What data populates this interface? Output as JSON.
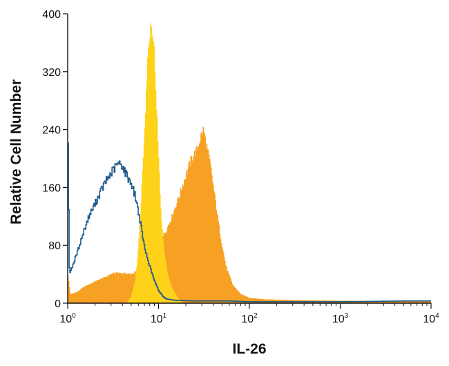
{
  "chart_data": {
    "type": "area",
    "xlabel": "IL-26",
    "ylabel": "Relative Cell Number",
    "x_scale": "log",
    "xlim": [
      1,
      10000
    ],
    "ylim": [
      0,
      400
    ],
    "x_ticks": [
      {
        "value": 1,
        "base": "10",
        "exp": "0"
      },
      {
        "value": 10,
        "base": "10",
        "exp": "1"
      },
      {
        "value": 100,
        "base": "10",
        "exp": "2"
      },
      {
        "value": 1000,
        "base": "10",
        "exp": "3"
      },
      {
        "value": 10000,
        "base": "10",
        "exp": "4"
      }
    ],
    "y_ticks": [
      {
        "value": 0,
        "label": "0"
      },
      {
        "value": 80,
        "label": "80"
      },
      {
        "value": 160,
        "label": "160"
      },
      {
        "value": 240,
        "label": "240"
      },
      {
        "value": 320,
        "label": "320"
      },
      {
        "value": 400,
        "label": "400"
      }
    ],
    "grid": false,
    "legend": "none",
    "series": [
      {
        "style": "filled",
        "color": "#f7a124",
        "points": [
          [
            1,
            38
          ],
          [
            1.06,
            12
          ],
          [
            1.25,
            15
          ],
          [
            1.5,
            22
          ],
          [
            2,
            30
          ],
          [
            2.5,
            35
          ],
          [
            3,
            40
          ],
          [
            3.5,
            42
          ],
          [
            4,
            41
          ],
          [
            5,
            40
          ],
          [
            6,
            45
          ],
          [
            7,
            50
          ],
          [
            8,
            62
          ],
          [
            9,
            72
          ],
          [
            10,
            82
          ],
          [
            12,
            100
          ],
          [
            14,
            120
          ],
          [
            17,
            150
          ],
          [
            20,
            178
          ],
          [
            23,
            200
          ],
          [
            26,
            210
          ],
          [
            29,
            230
          ],
          [
            31,
            240
          ],
          [
            33,
            222
          ],
          [
            37,
            190
          ],
          [
            42,
            140
          ],
          [
            48,
            90
          ],
          [
            55,
            50
          ],
          [
            65,
            25
          ],
          [
            80,
            12
          ],
          [
            100,
            7
          ],
          [
            150,
            5
          ],
          [
            300,
            4
          ],
          [
            1000,
            3
          ],
          [
            10000,
            2
          ]
        ]
      },
      {
        "style": "filled",
        "color": "#ffd21a",
        "points": [
          [
            4.5,
            0
          ],
          [
            5,
            10
          ],
          [
            5.5,
            30
          ],
          [
            6,
            80
          ],
          [
            6.5,
            160
          ],
          [
            7,
            250
          ],
          [
            7.5,
            330
          ],
          [
            8,
            380
          ],
          [
            8.4,
            385
          ],
          [
            8.8,
            360
          ],
          [
            9.3,
            290
          ],
          [
            10,
            190
          ],
          [
            10.7,
            110
          ],
          [
            11.5,
            70
          ],
          [
            12.5,
            40
          ],
          [
            14,
            20
          ],
          [
            16,
            8
          ],
          [
            18,
            0
          ]
        ]
      },
      {
        "style": "outline",
        "color": "#1d5a8c",
        "points": [
          [
            1,
            215
          ],
          [
            1.04,
            40
          ],
          [
            1.15,
            55
          ],
          [
            1.3,
            75
          ],
          [
            1.5,
            100
          ],
          [
            1.7,
            120
          ],
          [
            2,
            138
          ],
          [
            2.3,
            155
          ],
          [
            2.6,
            168
          ],
          [
            3,
            180
          ],
          [
            3.5,
            192
          ],
          [
            3.9,
            192
          ],
          [
            4.3,
            180
          ],
          [
            5,
            165
          ],
          [
            5.5,
            148
          ],
          [
            6,
            125
          ],
          [
            6.5,
            100
          ],
          [
            7,
            75
          ],
          [
            8,
            50
          ],
          [
            9,
            30
          ],
          [
            10,
            17
          ],
          [
            11,
            10
          ],
          [
            12,
            6
          ],
          [
            15,
            4
          ],
          [
            25,
            3
          ],
          [
            60,
            3
          ],
          [
            100,
            2
          ],
          [
            1000,
            2
          ],
          [
            5000,
            3
          ],
          [
            10000,
            3
          ]
        ]
      }
    ]
  }
}
